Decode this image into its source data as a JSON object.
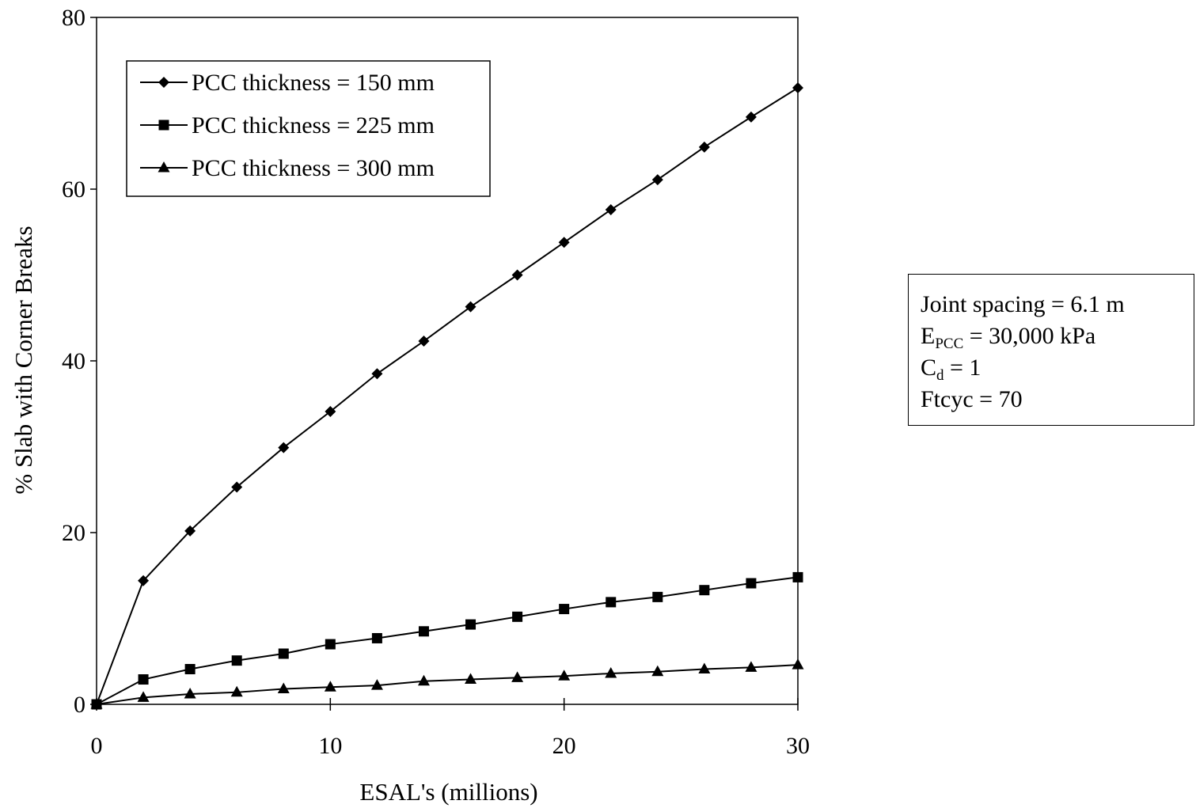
{
  "chart_data": {
    "type": "line",
    "title": "",
    "xlabel": "ESAL's (millions)",
    "ylabel": "% Slab with Corner Breaks",
    "xlim": [
      0,
      30
    ],
    "ylim": [
      0,
      80
    ],
    "xticks": [
      0,
      10,
      20,
      30
    ],
    "yticks": [
      0,
      20,
      40,
      60,
      80
    ],
    "xtick_labels": [
      "0",
      "10",
      "20",
      "30"
    ],
    "ytick_labels": [
      "0",
      "20",
      "40",
      "60",
      "80"
    ],
    "grid": false,
    "legend_position": "top-left",
    "x": [
      0,
      2,
      4,
      6,
      8,
      10,
      12,
      14,
      16,
      18,
      20,
      22,
      24,
      26,
      28,
      30
    ],
    "series": [
      {
        "name": "PCC thickness = 150 mm",
        "marker": "diamond",
        "values": [
          0,
          14.4,
          20.2,
          25.3,
          29.9,
          34.1,
          38.5,
          42.3,
          46.3,
          50.0,
          53.8,
          57.6,
          61.1,
          64.9,
          68.4,
          71.8
        ]
      },
      {
        "name": "PCC thickness = 225 mm",
        "marker": "square",
        "values": [
          0,
          2.9,
          4.1,
          5.1,
          5.9,
          7.0,
          7.7,
          8.5,
          9.3,
          10.2,
          11.1,
          11.9,
          12.5,
          13.3,
          14.1,
          14.8
        ]
      },
      {
        "name": "PCC thickness = 300 mm",
        "marker": "triangle",
        "values": [
          0,
          0.8,
          1.2,
          1.4,
          1.8,
          2.0,
          2.2,
          2.7,
          2.9,
          3.1,
          3.3,
          3.6,
          3.8,
          4.1,
          4.3,
          4.6
        ]
      }
    ]
  },
  "note_box": {
    "line1": "Joint spacing = 6.1 m",
    "line2_main": "E",
    "line2_sub": "PCC",
    "line2_rest": " = 30,000 kPa",
    "line3_main": "C",
    "line3_sub": "d",
    "line3_rest": " = 1",
    "line4": "Ftcyc = 70"
  }
}
